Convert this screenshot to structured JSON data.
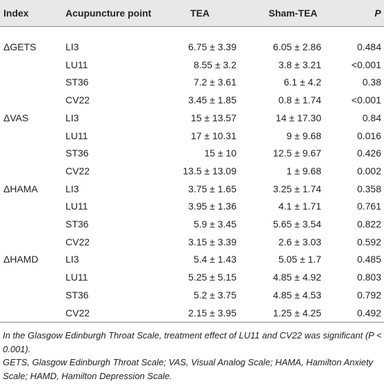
{
  "table": {
    "header": [
      "Index",
      "Acupuncture point",
      "TEA",
      "Sham-TEA",
      "P"
    ],
    "groups": [
      {
        "index": "ΔGETS",
        "rows": [
          [
            "LI3",
            "6.75 ± 3.39",
            "6.05 ± 2.86",
            "0.484"
          ],
          [
            "LU11",
            "8.55 ± 3.2",
            "3.8 ± 3.21",
            "<0.001"
          ],
          [
            "ST36",
            "7.2 ± 3.61",
            "6.1 ± 4.2",
            "0.38"
          ],
          [
            "CV22",
            "3.45 ± 1.85",
            "0.8 ± 1.74",
            "<0.001"
          ]
        ]
      },
      {
        "index": "ΔVAS",
        "rows": [
          [
            "LI3",
            "15 ± 13.57",
            "14 ± 17.30",
            "0.84"
          ],
          [
            "LU11",
            "17 ± 10.31",
            "9 ± 9.68",
            "0.016"
          ],
          [
            "ST36",
            "15 ± 10",
            "12.5 ± 9.67",
            "0.426"
          ],
          [
            "CV22",
            "13.5 ± 13.09",
            "1 ± 9.68",
            "0.002"
          ]
        ]
      },
      {
        "index": "ΔHAMA",
        "rows": [
          [
            "LI3",
            "3.75 ± 1.65",
            "3.25 ± 1.74",
            "0.358"
          ],
          [
            "LU11",
            "3.95 ± 1.36",
            "4.1 ± 1.71",
            "0.761"
          ],
          [
            "ST36",
            "5.9 ± 3.45",
            "5.65 ± 3.54",
            "0.822"
          ],
          [
            "CV22",
            "3.15 ± 3.39",
            "2.6 ± 3.03",
            "0.592"
          ]
        ]
      },
      {
        "index": "ΔHAMD",
        "rows": [
          [
            "LI3",
            "5.4 ± 1.43",
            "5.05 ± 1.7",
            "0.485"
          ],
          [
            "LU11",
            "5.25 ± 5.15",
            "4.85 ± 4.92",
            "0.803"
          ],
          [
            "ST36",
            "5.2 ± 3.75",
            "4.85 ± 4.53",
            "0.792"
          ],
          [
            "CV22",
            "2.15 ± 3.95",
            "1.25 ± 4.25",
            "0.492"
          ]
        ]
      }
    ]
  },
  "footnotes": [
    "In the Glasgow Edinburgh Throat Scale, treatment effect of LU11 and CV22 was significant (P < 0.001).",
    "GETS, Glasgow Edinburgh Throat Scale; VAS, Visual Analog Scale; HAMA, Hamilton Anxiety Scale; HAMD, Hamilton Depression Scale."
  ]
}
